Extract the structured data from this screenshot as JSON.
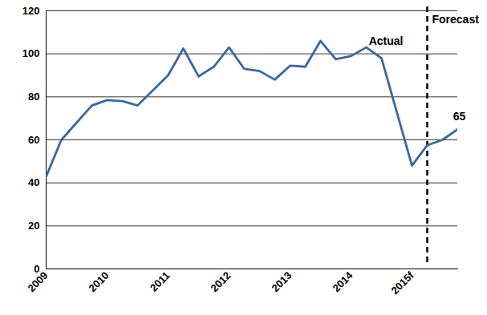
{
  "chart_data": {
    "type": "line",
    "categories": [
      "2009",
      null,
      null,
      null,
      "2010",
      null,
      null,
      null,
      "2011",
      null,
      null,
      null,
      "2012",
      null,
      null,
      null,
      "2013",
      null,
      null,
      null,
      "2014",
      null,
      null,
      null,
      "2015f",
      null,
      null,
      null
    ],
    "series": [
      {
        "name": "Actual",
        "color": "#3a67a3",
        "values": [
          43,
          60,
          68,
          76,
          78.5,
          78,
          76,
          83,
          90,
          102.5,
          89.5,
          94,
          103,
          93,
          92,
          88,
          94.5,
          94,
          106,
          97.5,
          99,
          103,
          98,
          73,
          48,
          57.5,
          null,
          null
        ]
      },
      {
        "name": "Forecast",
        "color": "#3a67a3",
        "values": [
          null,
          null,
          null,
          null,
          null,
          null,
          null,
          null,
          null,
          null,
          null,
          null,
          null,
          null,
          null,
          null,
          null,
          null,
          null,
          null,
          null,
          null,
          null,
          null,
          null,
          57.5,
          60,
          65
        ],
        "value_labels": [
          null,
          null,
          null,
          null,
          null,
          null,
          null,
          null,
          null,
          null,
          null,
          null,
          null,
          null,
          null,
          null,
          null,
          null,
          null,
          null,
          null,
          null,
          null,
          null,
          null,
          null,
          null,
          "65"
        ]
      }
    ],
    "ylim": [
      0,
      120
    ],
    "yticks": [
      0,
      20,
      40,
      60,
      80,
      100,
      120
    ],
    "grid": true,
    "legend": false
  }
}
